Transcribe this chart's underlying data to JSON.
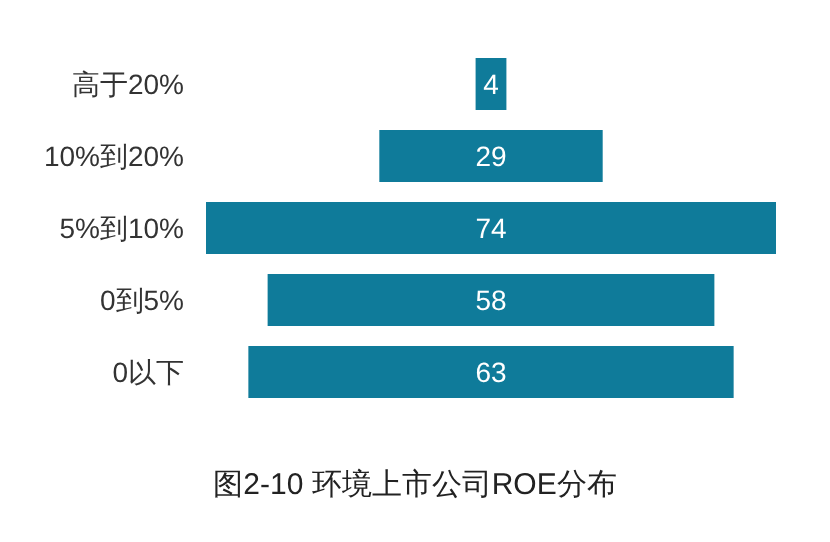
{
  "chart_data": {
    "type": "other",
    "title": "图2-10 环境上市公司ROE分布",
    "categories": [
      "高于20%",
      "10%到20%",
      "5%到10%",
      "0到5%",
      "0以下"
    ],
    "values": [
      4,
      29,
      74,
      58,
      63
    ],
    "color": "#0f7b9a",
    "data_labels": true
  }
}
